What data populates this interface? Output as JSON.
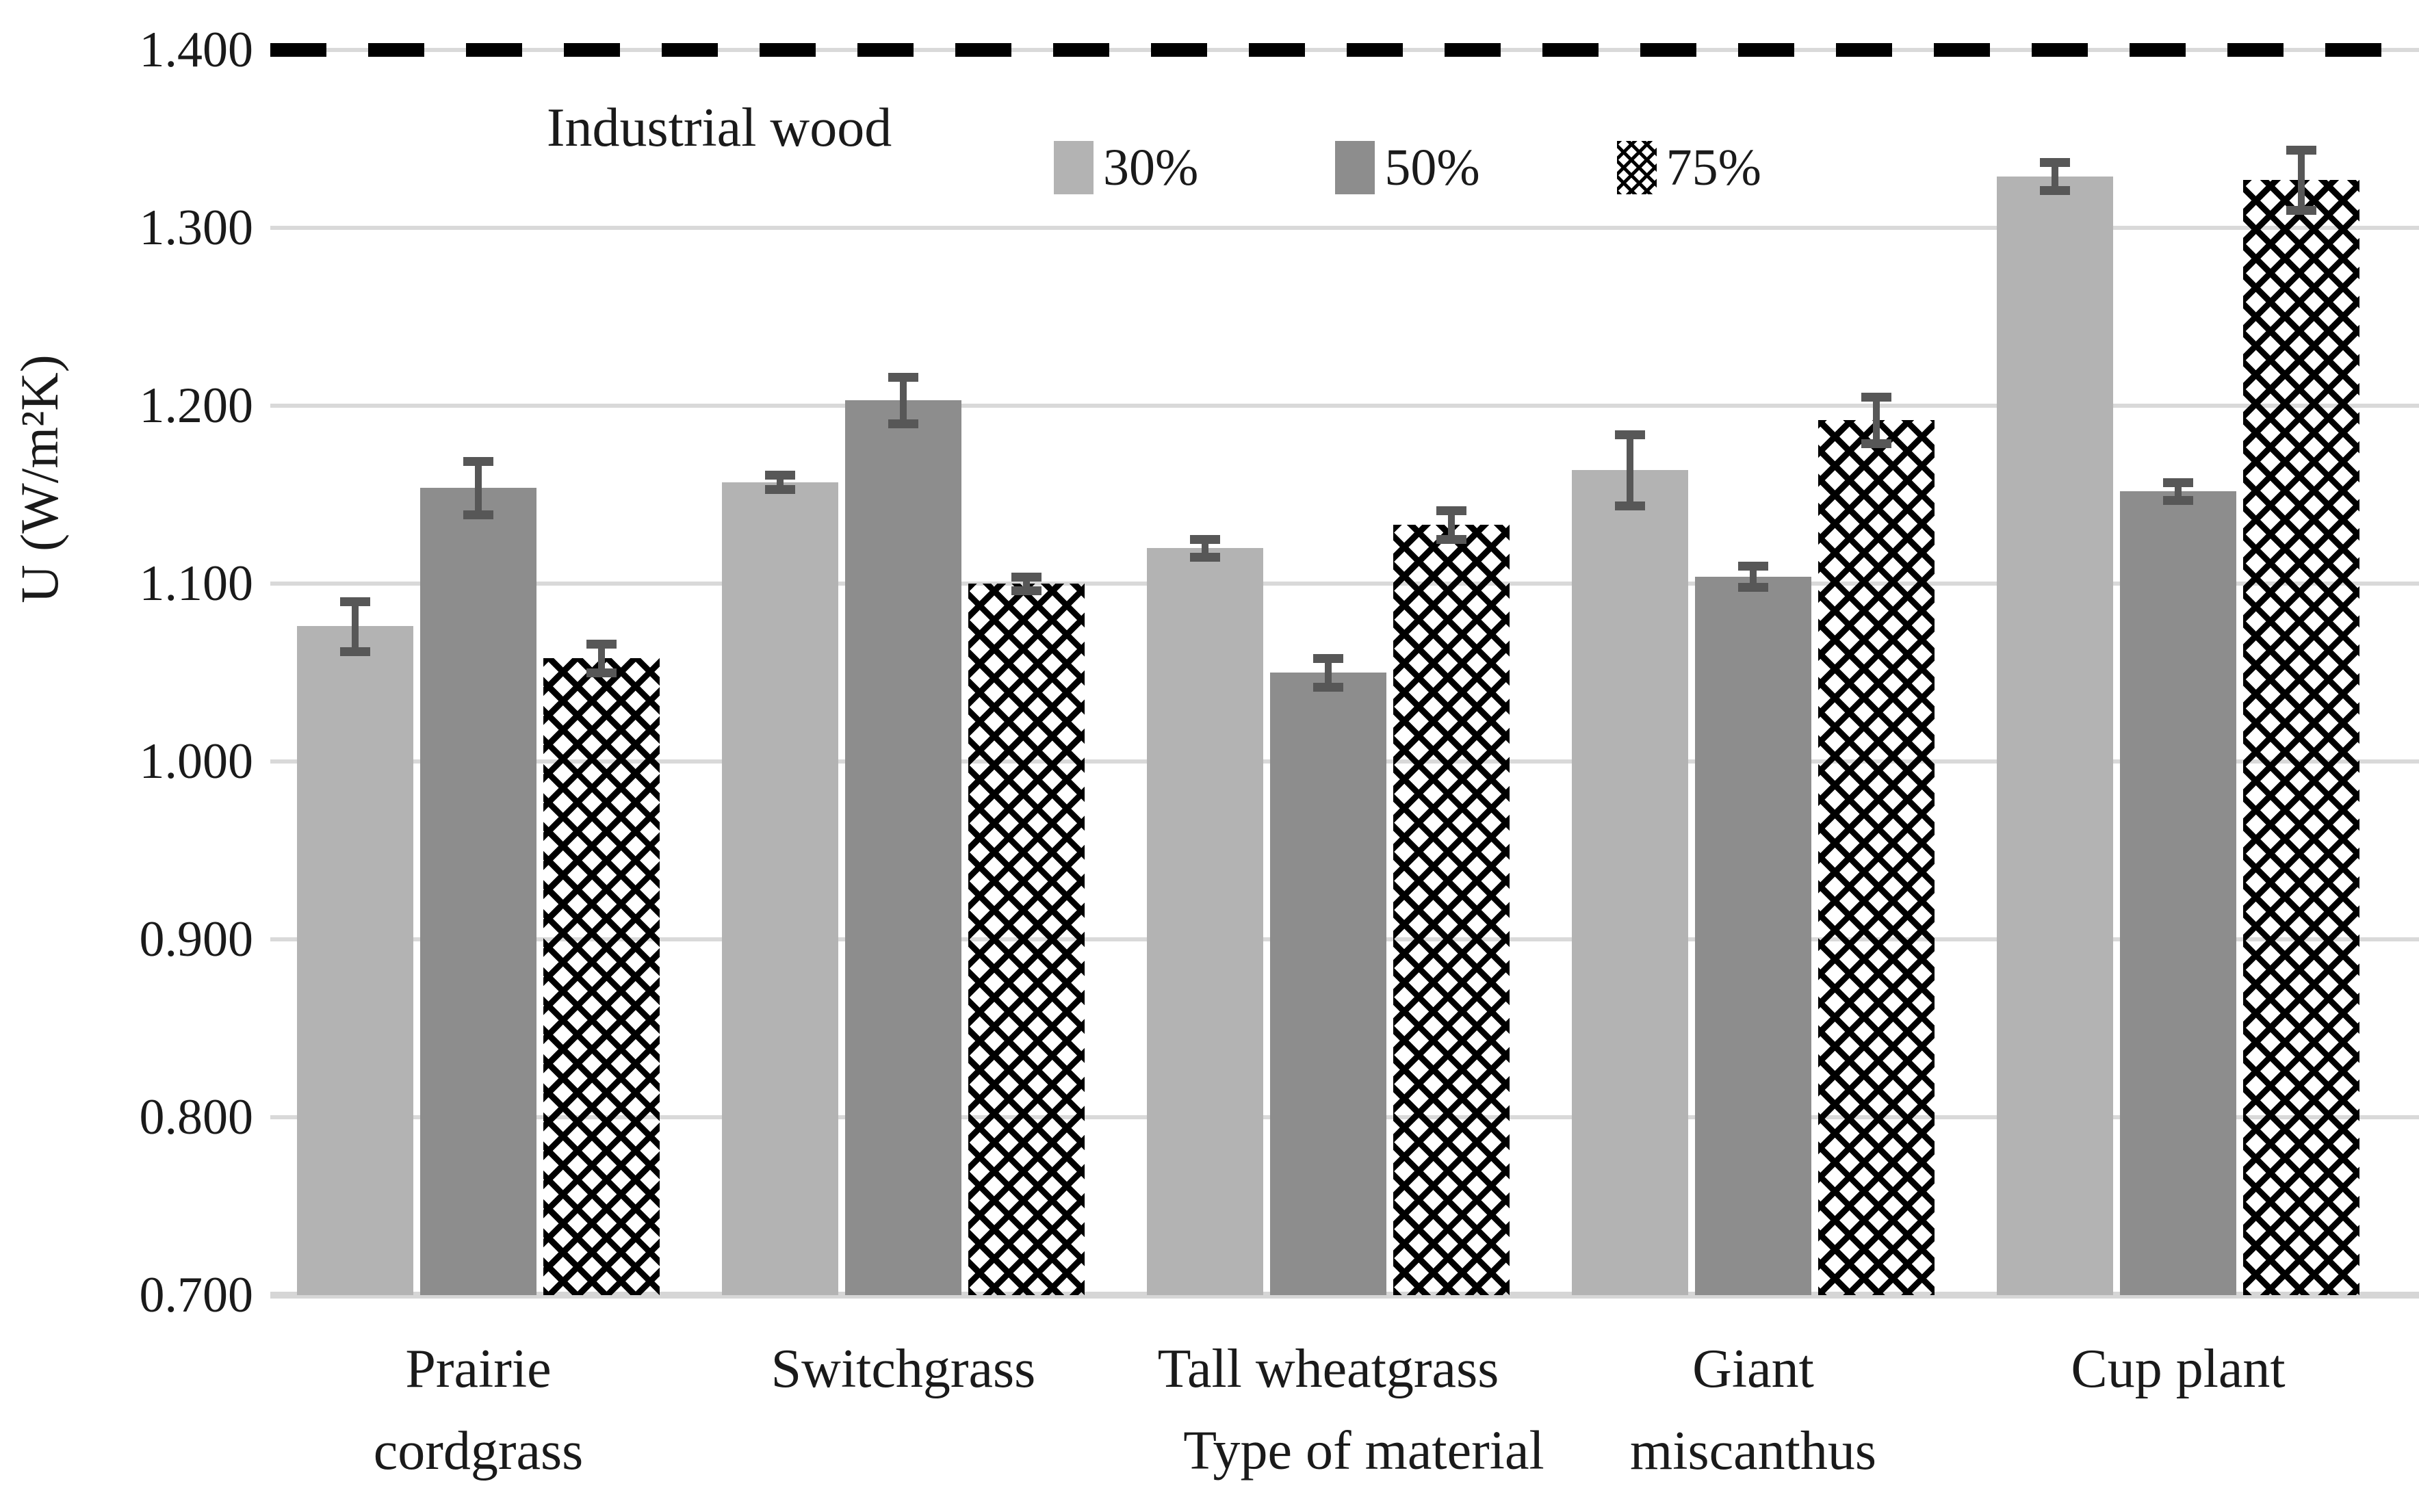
{
  "chart_data": {
    "type": "bar",
    "title": "",
    "xlabel": "Type of material",
    "ylabel": "U (W/m²K)",
    "ylim": [
      0.7,
      1.4
    ],
    "grid": true,
    "legend_position": "top-center",
    "yticks": [
      1.4,
      1.3,
      1.2,
      1.1,
      1.0,
      0.9,
      0.8,
      0.7
    ],
    "ytick_labels": [
      "1.400",
      "1.300",
      "1.200",
      "1.100",
      "1.000",
      "0.900",
      "0.800",
      "0.700"
    ],
    "categories": [
      "Prairie cordgrass",
      "Switchgrass",
      "Tall wheatgrass",
      "Giant miscanthus",
      "Cup plant"
    ],
    "category_lines": [
      [
        "Prairie",
        "cordgrass"
      ],
      [
        "Switchgrass"
      ],
      [
        "Tall wheatgrass"
      ],
      [
        "Giant",
        "miscanthus"
      ],
      [
        "Cup plant"
      ]
    ],
    "series": [
      {
        "name": "30%",
        "fill": "#b3b3b3",
        "pattern": "solid",
        "values": [
          1.076,
          1.157,
          1.12,
          1.164,
          1.329
        ],
        "errors": [
          0.014,
          0.004,
          0.005,
          0.02,
          0.008
        ]
      },
      {
        "name": "50%",
        "fill": "#8d8d8d",
        "pattern": "solid",
        "values": [
          1.154,
          1.203,
          1.05,
          1.104,
          1.152
        ],
        "errors": [
          0.015,
          0.013,
          0.008,
          0.006,
          0.005
        ]
      },
      {
        "name": "75%",
        "fill": "#ffffff",
        "pattern": "diagonal-crosshatch",
        "values": [
          1.058,
          1.1,
          1.133,
          1.192,
          1.327
        ],
        "errors": [
          0.008,
          0.004,
          0.008,
          0.013,
          0.017
        ]
      }
    ],
    "reference_line": {
      "label": "Industrial wood",
      "value": 1.4,
      "style": "dashed",
      "color": "#000000"
    }
  },
  "style": {
    "error_bar_color": "#575757",
    "gridline_color": "#d9d9d9",
    "text_color": "#1a1a1a",
    "background": "#ffffff"
  }
}
